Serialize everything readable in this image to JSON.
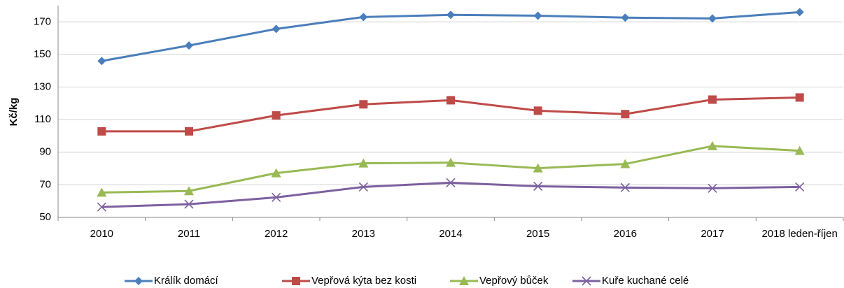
{
  "chart_data": {
    "type": "line",
    "y_label": "Kč/kg",
    "categories": [
      "2010",
      "2011",
      "2012",
      "2013",
      "2014",
      "2015",
      "2016",
      "2017",
      "2018 leden-říjen"
    ],
    "ylim": [
      50,
      180
    ],
    "yticks": [
      50,
      70,
      90,
      110,
      130,
      150,
      170
    ],
    "grid": true,
    "legend": "bottom",
    "series": [
      {
        "name": "Králík domácí",
        "color": "#4a7ebb",
        "marker": "diamond",
        "values": [
          146,
          155.5,
          165.7,
          173,
          174.3,
          173.8,
          172.6,
          172.1,
          176
        ]
      },
      {
        "name": "Vepřová kýta bez kosti",
        "color": "#be4b48",
        "marker": "square",
        "values": [
          102.8,
          102.8,
          112.6,
          119.4,
          121.9,
          115.5,
          113.4,
          122.3,
          123.6
        ]
      },
      {
        "name": "Vepřový bůček",
        "color": "#98b954",
        "marker": "triangle",
        "values": [
          65.3,
          66.2,
          77.2,
          83.2,
          83.6,
          80.2,
          82.8,
          93.8,
          90.9
        ]
      },
      {
        "name": "Kuře kuchané celé",
        "color": "#7d60a0",
        "marker": "x",
        "values": [
          56.4,
          58.1,
          62.3,
          68.7,
          71.3,
          69.1,
          68.3,
          67.9,
          68.7
        ]
      }
    ]
  }
}
